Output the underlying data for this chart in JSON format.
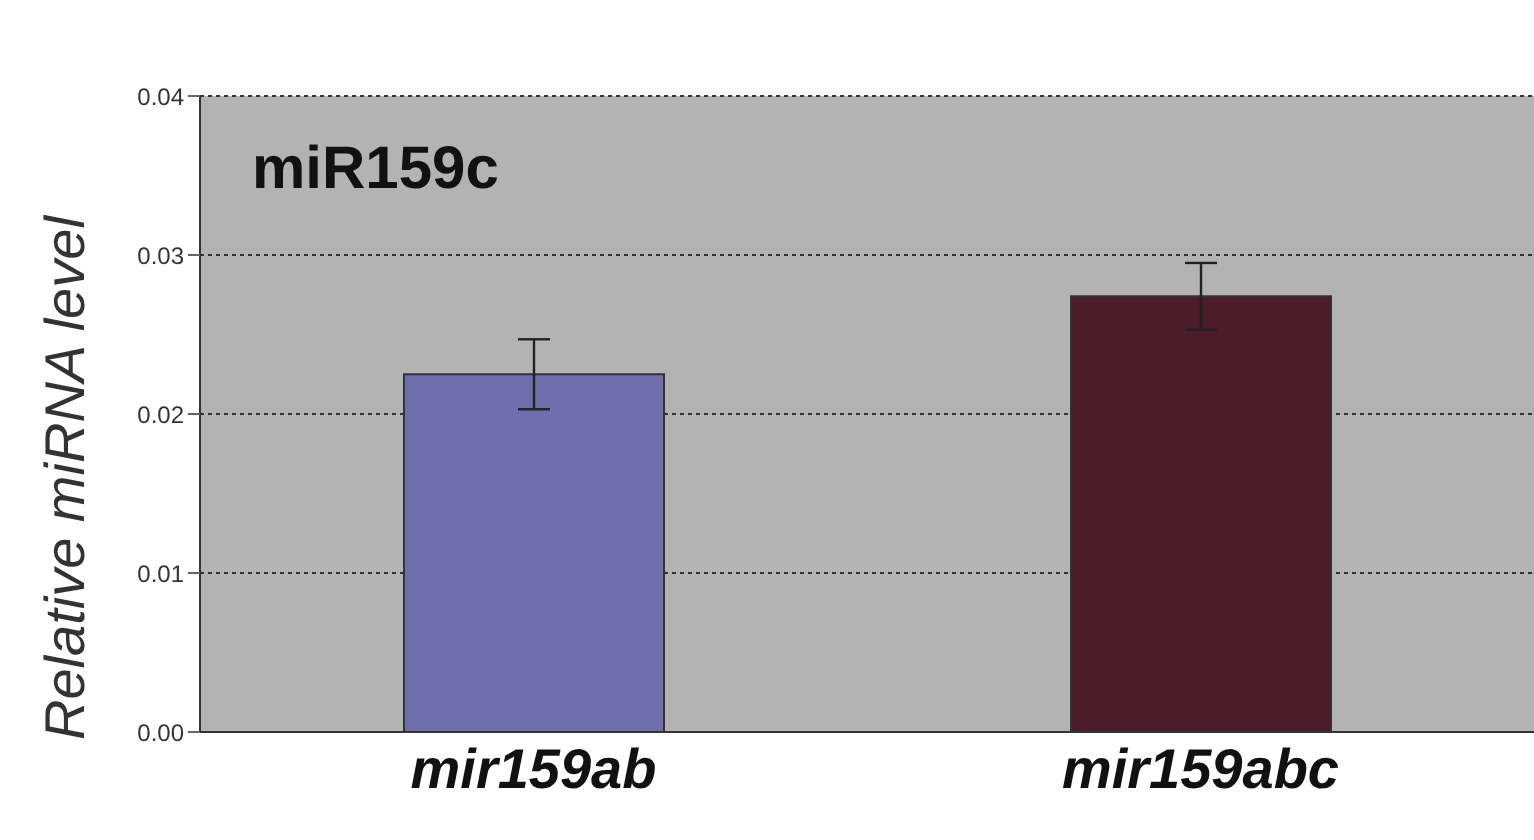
{
  "chart_data": {
    "type": "bar",
    "title": "miR159c",
    "ylabel": "Relative miRNA level",
    "categories": [
      "mir159ab",
      "mir159abc"
    ],
    "values": [
      0.0225,
      0.0274
    ],
    "errors": [
      0.0022,
      0.0021
    ],
    "colors": [
      "#6f6fad",
      "#4d1c2a"
    ],
    "ylim": [
      0,
      0.04
    ],
    "yticks": [
      {
        "value": 0,
        "label": "0.00"
      },
      {
        "value": 0.01,
        "label": "0.01"
      },
      {
        "value": 0.02,
        "label": "0.02"
      },
      {
        "value": 0.03,
        "label": "0.03"
      },
      {
        "value": 0.04,
        "label": "0.04"
      }
    ],
    "grid": "y",
    "line_style": "dotted"
  }
}
